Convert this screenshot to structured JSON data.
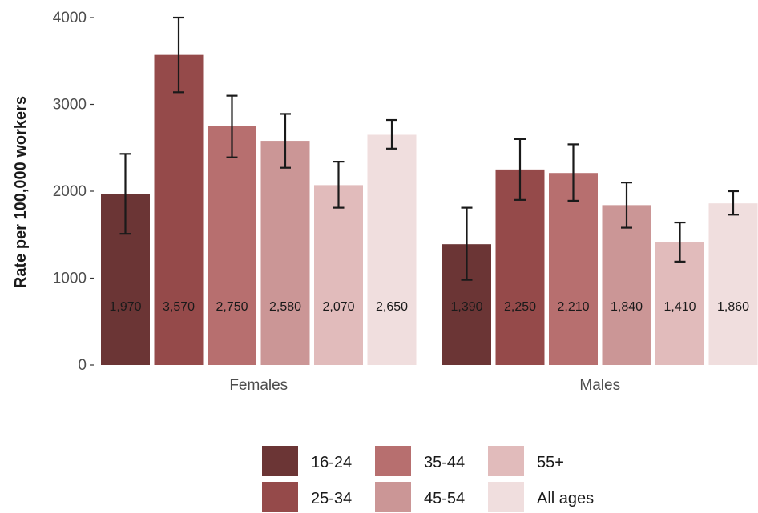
{
  "chart_data": {
    "type": "bar",
    "title": "",
    "xlabel": "",
    "ylabel": "Rate per 100,000 workers",
    "ylim": [
      0,
      4000
    ],
    "yticks": [
      0,
      1000,
      2000,
      3000,
      4000
    ],
    "grid": false,
    "legend_position": "bottom",
    "categories": [
      "Females",
      "Males"
    ],
    "series": [
      {
        "name": "16-24",
        "color": "#6b3535",
        "values": [
          1970,
          1390
        ],
        "labels": [
          "1,970",
          "1,390"
        ],
        "error_low": [
          1510,
          980
        ],
        "error_high": [
          2430,
          1810
        ]
      },
      {
        "name": "25-34",
        "color": "#954a4a",
        "values": [
          3570,
          2250
        ],
        "labels": [
          "3,570",
          "2,250"
        ],
        "error_low": [
          3140,
          1900
        ],
        "error_high": [
          4000,
          2600
        ]
      },
      {
        "name": "35-44",
        "color": "#b76f6f",
        "values": [
          2750,
          2210
        ],
        "labels": [
          "2,750",
          "2,210"
        ],
        "error_low": [
          2390,
          1890
        ],
        "error_high": [
          3100,
          2540
        ]
      },
      {
        "name": "45-54",
        "color": "#cb9696",
        "values": [
          2580,
          1840
        ],
        "labels": [
          "2,580",
          "1,840"
        ],
        "error_low": [
          2270,
          1580
        ],
        "error_high": [
          2890,
          2100
        ]
      },
      {
        "name": "55+",
        "color": "#e1bbbb",
        "values": [
          2070,
          1410
        ],
        "labels": [
          "2,070",
          "1,410"
        ],
        "error_low": [
          1810,
          1190
        ],
        "error_high": [
          2340,
          1640
        ]
      },
      {
        "name": "All ages",
        "color": "#f0dede",
        "values": [
          2650,
          1860
        ],
        "labels": [
          "2,650",
          "1,860"
        ],
        "error_low": [
          2490,
          1730
        ],
        "error_high": [
          2820,
          2000
        ]
      }
    ]
  }
}
